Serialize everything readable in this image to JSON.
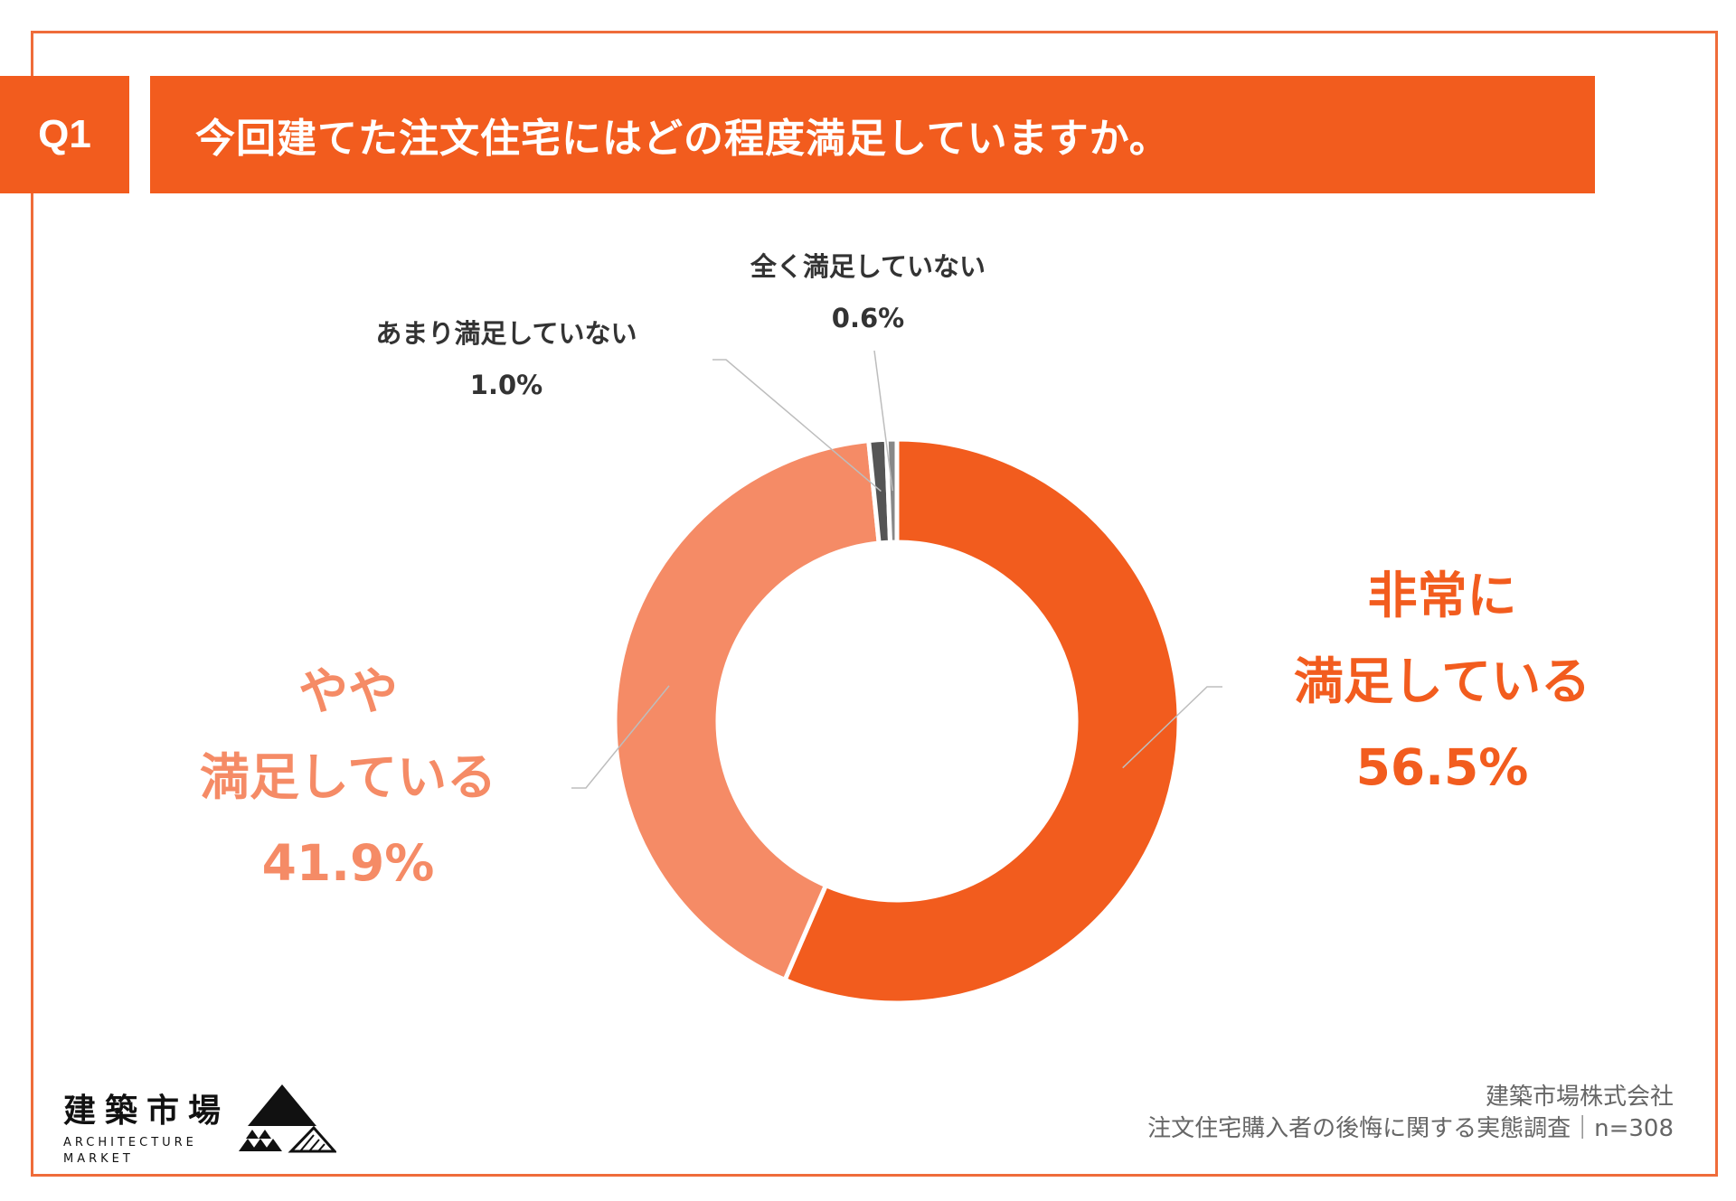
{
  "header": {
    "q_label": "Q1",
    "question": "今回建てた注文住宅にはどの程度満足していますか。"
  },
  "chart_data": {
    "type": "pie",
    "variant": "donut",
    "start": "top",
    "direction": "clockwise",
    "slices": [
      {
        "label_lines": [
          "非常に",
          "満足している"
        ],
        "value": 56.5,
        "value_label": "56.5%",
        "color": "#f25c1e"
      },
      {
        "label_lines": [
          "やや",
          "満足している"
        ],
        "value": 41.9,
        "value_label": "41.9%",
        "color": "#f58b66"
      },
      {
        "label_lines": [
          "あまり満足していない"
        ],
        "value": 1.0,
        "value_label": "1.0%",
        "color": "#555555"
      },
      {
        "label_lines": [
          "全く満足していない"
        ],
        "value": 0.6,
        "value_label": "0.6%",
        "color": "#888888"
      }
    ]
  },
  "logo": {
    "jp": "建築市場",
    "en_line1": "ARCHITECTURE",
    "en_line2": "MARKET"
  },
  "source": {
    "line1": "建築市場株式会社",
    "line2": "注文住宅購入者の後悔に関する実態調査｜n=308"
  }
}
